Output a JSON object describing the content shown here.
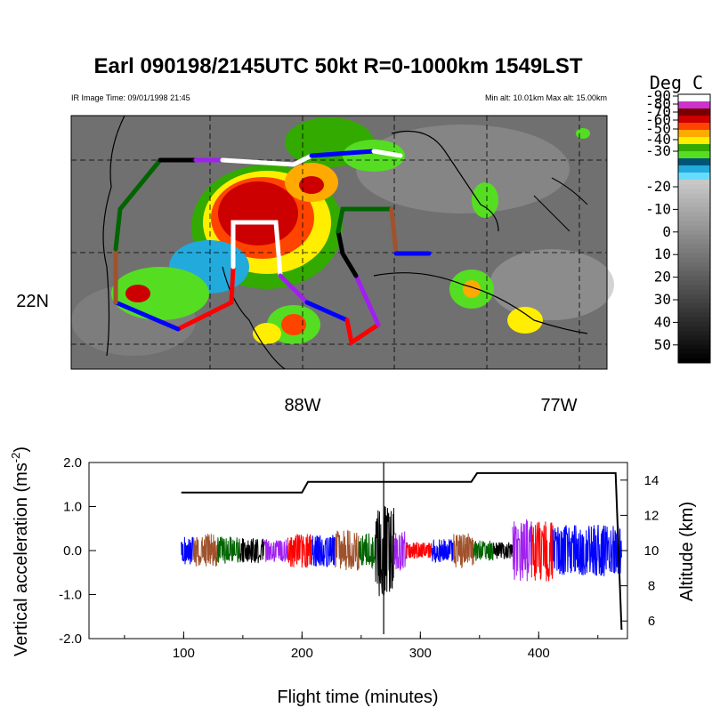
{
  "title": "Earl 090198/2145UTC 50kt  R=0-1000km 1549LST",
  "ir_time": "IR Image Time: 09/01/1998 21:45",
  "alt_range": "Min alt: 10.01km  Max alt: 15.00km",
  "colorbar": {
    "title": "Deg C",
    "labels": [
      "-90",
      "-80",
      "-70",
      "-60",
      "-50",
      "-40",
      "-30",
      "-20",
      "-10",
      "0",
      "10",
      "20",
      "30",
      "40",
      "50"
    ],
    "colors": [
      "#ffffff",
      "#cc33cc",
      "#7a0000",
      "#cc0000",
      "#ff4400",
      "#ffaa00",
      "#ffee00",
      "#33aa00",
      "#55dd22",
      "#005577",
      "#22aadd",
      "#66ddff"
    ]
  },
  "map": {
    "lat_label": "22N",
    "lon_labels": [
      "88W",
      "77W"
    ]
  },
  "chart_data": {
    "type": "line",
    "xlabel": "Flight time (minutes)",
    "ylabel": "Vertical acceleration (ms",
    "ylabel_sup": "-2",
    "ylabel_close": ")",
    "y2label": "Altitude (km)",
    "xlim": [
      20,
      475
    ],
    "ylim": [
      -2.0,
      2.0
    ],
    "y2lim": [
      5.0,
      15.0
    ],
    "xticks": [
      "100",
      "200",
      "300",
      "400"
    ],
    "yticks": [
      "2.0",
      "1.0",
      "0.0",
      "-1.0",
      "-2.0"
    ],
    "y2ticks": [
      "6",
      "8",
      "10",
      "12",
      "14"
    ],
    "series": [
      {
        "values": [
          [
            98,
            13.3
          ],
          [
            200,
            13.3
          ],
          [
            205,
            13.9
          ],
          [
            343,
            13.9
          ],
          [
            348,
            14.4
          ],
          [
            465,
            14.4
          ],
          [
            470,
            5.5
          ]
        ]
      }
    ],
    "segments": [
      {
        "color": "#0000ff",
        "start": 98,
        "end": 108,
        "amp": 0.25
      },
      {
        "color": "#a0522d",
        "start": 108,
        "end": 128,
        "amp": 0.3
      },
      {
        "color": "#006400",
        "start": 128,
        "end": 148,
        "amp": 0.25
      },
      {
        "color": "#000000",
        "start": 148,
        "end": 168,
        "amp": 0.22
      },
      {
        "color": "#a020f0",
        "start": 168,
        "end": 188,
        "amp": 0.2
      },
      {
        "color": "#ff0000",
        "start": 188,
        "end": 208,
        "amp": 0.3
      },
      {
        "color": "#0000ff",
        "start": 208,
        "end": 228,
        "amp": 0.28
      },
      {
        "color": "#a0522d",
        "start": 228,
        "end": 248,
        "amp": 0.35
      },
      {
        "color": "#006400",
        "start": 248,
        "end": 262,
        "amp": 0.3
      },
      {
        "color": "#000000",
        "start": 262,
        "end": 278,
        "amp": 0.8
      },
      {
        "color": "#a020f0",
        "start": 278,
        "end": 288,
        "amp": 0.35
      },
      {
        "color": "#ff0000",
        "start": 288,
        "end": 310,
        "amp": 0.15
      },
      {
        "color": "#0000ff",
        "start": 310,
        "end": 328,
        "amp": 0.2
      },
      {
        "color": "#a0522d",
        "start": 328,
        "end": 345,
        "amp": 0.3
      },
      {
        "color": "#006400",
        "start": 345,
        "end": 362,
        "amp": 0.18
      },
      {
        "color": "#000000",
        "start": 362,
        "end": 378,
        "amp": 0.15
      },
      {
        "color": "#a020f0",
        "start": 378,
        "end": 394,
        "amp": 0.55
      },
      {
        "color": "#ff0000",
        "start": 394,
        "end": 412,
        "amp": 0.55
      },
      {
        "color": "#0000ff",
        "start": 412,
        "end": 470,
        "amp": 0.45
      }
    ]
  }
}
